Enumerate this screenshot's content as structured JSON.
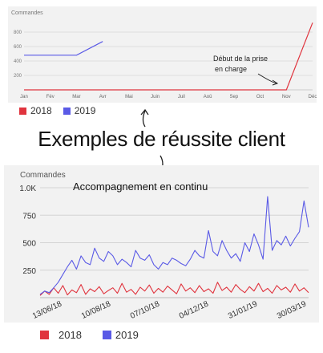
{
  "top_chart": {
    "y_axis_title": "Commandes",
    "annotation": [
      "Début de la prise",
      "en charge"
    ]
  },
  "main_title": "Exemples de réussite client",
  "bottom_chart": {
    "y_axis_title": "Commandes",
    "annotation": "Accompagnement en continu"
  },
  "colors": {
    "series_2018": "#e0343e",
    "series_2019": "#5a5ae6"
  },
  "chart_data": [
    {
      "type": "line",
      "ylabel": "Commandes",
      "categories": [
        "Jan",
        "Fév",
        "Mar",
        "Avr",
        "Mai",
        "Juin",
        "Juil",
        "Aoû",
        "Sep",
        "Oct",
        "Nov",
        "Déc"
      ],
      "yticks": [
        200,
        400,
        600,
        800
      ],
      "ylim": [
        0,
        1000
      ],
      "grid": true,
      "legend": "bottom-left",
      "series": [
        {
          "name": "2018",
          "values": [
            0,
            0,
            0,
            0,
            0,
            0,
            0,
            0,
            0,
            0,
            0,
            930
          ]
        },
        {
          "name": "2019",
          "values": [
            480,
            480,
            480,
            670,
            null,
            null,
            null,
            null,
            null,
            null,
            null,
            null
          ]
        }
      ]
    },
    {
      "type": "line",
      "ylabel": "Commandes",
      "x_ticks": [
        "13/06/18",
        "10/08/18",
        "07/10/18",
        "04/12/18",
        "31/01/19",
        "30/03/19"
      ],
      "yticks": [
        "250",
        "500",
        "750",
        "1.0K"
      ],
      "ylim": [
        0,
        1000
      ],
      "grid": true,
      "legend": "bottom-left",
      "series": [
        {
          "name": "2018",
          "values": [
            20,
            60,
            30,
            90,
            40,
            110,
            25,
            70,
            45,
            120,
            30,
            80,
            55,
            100,
            35,
            65,
            90,
            40,
            130,
            50,
            75,
            30,
            95,
            60,
            115,
            40,
            85,
            50,
            105,
            70,
            35,
            125,
            60,
            90,
            45,
            110,
            55,
            80,
            40,
            140,
            65,
            95,
            50,
            120,
            75,
            45,
            100,
            60,
            130,
            55,
            85,
            40,
            110,
            70,
            95,
            50,
            125,
            60,
            90,
            45
          ]
        },
        {
          "name": "2019",
          "values": [
            30,
            60,
            45,
            90,
            140,
            210,
            280,
            340,
            260,
            380,
            320,
            300,
            450,
            360,
            330,
            420,
            380,
            300,
            350,
            320,
            280,
            430,
            360,
            340,
            390,
            300,
            260,
            320,
            300,
            360,
            340,
            310,
            290,
            350,
            430,
            380,
            360,
            610,
            420,
            380,
            520,
            430,
            360,
            400,
            330,
            500,
            420,
            580,
            480,
            350,
            920,
            430,
            520,
            480,
            560,
            470,
            540,
            600,
            880,
            640
          ]
        }
      ]
    }
  ],
  "legend": [
    {
      "name": "2018"
    },
    {
      "name": "2019"
    }
  ]
}
